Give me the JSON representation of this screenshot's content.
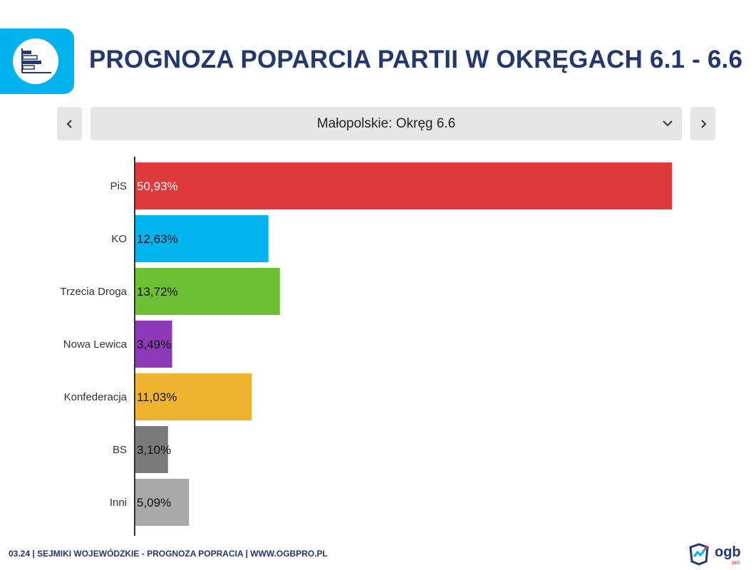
{
  "header": {
    "title": "PROGNOZA POPARCIA PARTII W OKRĘGACH 6.1 - 6.6",
    "icon": "bar-chart-icon"
  },
  "selector": {
    "value": "Małopolskie: Okręg 6.6",
    "prev_icon": "chevron-left-icon",
    "next_icon": "chevron-right-icon",
    "dropdown_icon": "chevron-down-icon"
  },
  "chart_data": {
    "type": "bar",
    "orientation": "horizontal",
    "categories": [
      "PiS",
      "KO",
      "Trzecia Droga",
      "Nowa Lewica",
      "Konfederacja",
      "BS",
      "Inni"
    ],
    "values": [
      50.93,
      12.63,
      13.72,
      3.49,
      11.03,
      3.1,
      5.09
    ],
    "value_labels": [
      "50,93%",
      "12,63%",
      "13,72%",
      "3,49%",
      "11,03%",
      "3,10%",
      "5,09%"
    ],
    "colors": [
      "#e0393b",
      "#00b5ef",
      "#6dbe32",
      "#8e3ab8",
      "#f0b32f",
      "#7a7a7a",
      "#a8a8a8"
    ],
    "xlim": [
      0,
      51
    ],
    "grid": false
  },
  "footer": {
    "text": "03.24 | SEJMIKI WOJEWÓDZKIE - PROGNOZA POPRACIA | WWW.OGBPRO.PL"
  },
  "logo": {
    "text": "ogb",
    "sub": "pro"
  }
}
